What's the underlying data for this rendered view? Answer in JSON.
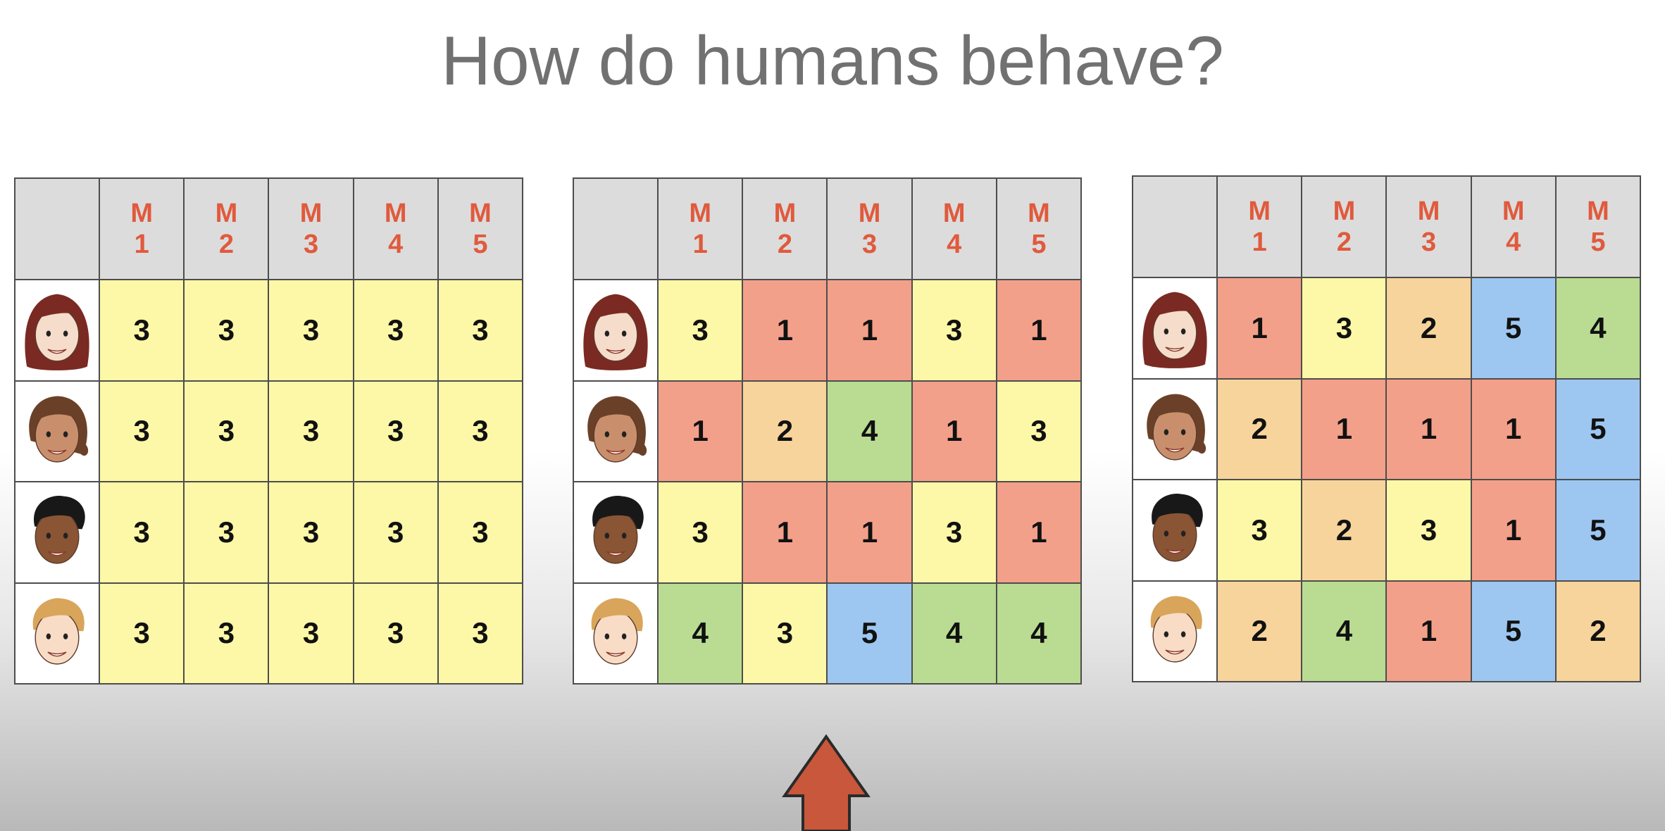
{
  "title": "How do humans behave?",
  "colors": {
    "1": "#f3a08a",
    "2": "#f7d49b",
    "3": "#fdf8a7",
    "4": "#b9dc92",
    "5": "#9dc7f1"
  },
  "avatars": [
    "woman-red-hair-avatar",
    "woman-brown-hair-avatar",
    "man-curly-hair-avatar",
    "man-blond-hair-avatar"
  ],
  "tables": [
    {
      "headers": [
        [
          "M",
          "1"
        ],
        [
          "M",
          "2"
        ],
        [
          "M",
          "3"
        ],
        [
          "M",
          "4"
        ],
        [
          "M",
          "5"
        ]
      ],
      "rows": [
        [
          3,
          3,
          3,
          3,
          3
        ],
        [
          3,
          3,
          3,
          3,
          3
        ],
        [
          3,
          3,
          3,
          3,
          3
        ],
        [
          3,
          3,
          3,
          3,
          3
        ]
      ]
    },
    {
      "headers": [
        [
          "M",
          "1"
        ],
        [
          "M",
          "2"
        ],
        [
          "M",
          "3"
        ],
        [
          "M",
          "4"
        ],
        [
          "M",
          "5"
        ]
      ],
      "rows": [
        [
          3,
          1,
          1,
          3,
          1
        ],
        [
          1,
          2,
          4,
          1,
          3
        ],
        [
          3,
          1,
          1,
          3,
          1
        ],
        [
          4,
          3,
          5,
          4,
          4
        ]
      ]
    },
    {
      "headers": [
        [
          "M",
          "1"
        ],
        [
          "M",
          "2"
        ],
        [
          "M",
          "3"
        ],
        [
          "M",
          "4"
        ],
        [
          "M",
          "5"
        ]
      ],
      "rows": [
        [
          1,
          3,
          2,
          5,
          4
        ],
        [
          2,
          1,
          1,
          1,
          5
        ],
        [
          3,
          2,
          3,
          1,
          5
        ],
        [
          2,
          4,
          1,
          5,
          2
        ]
      ]
    }
  ]
}
